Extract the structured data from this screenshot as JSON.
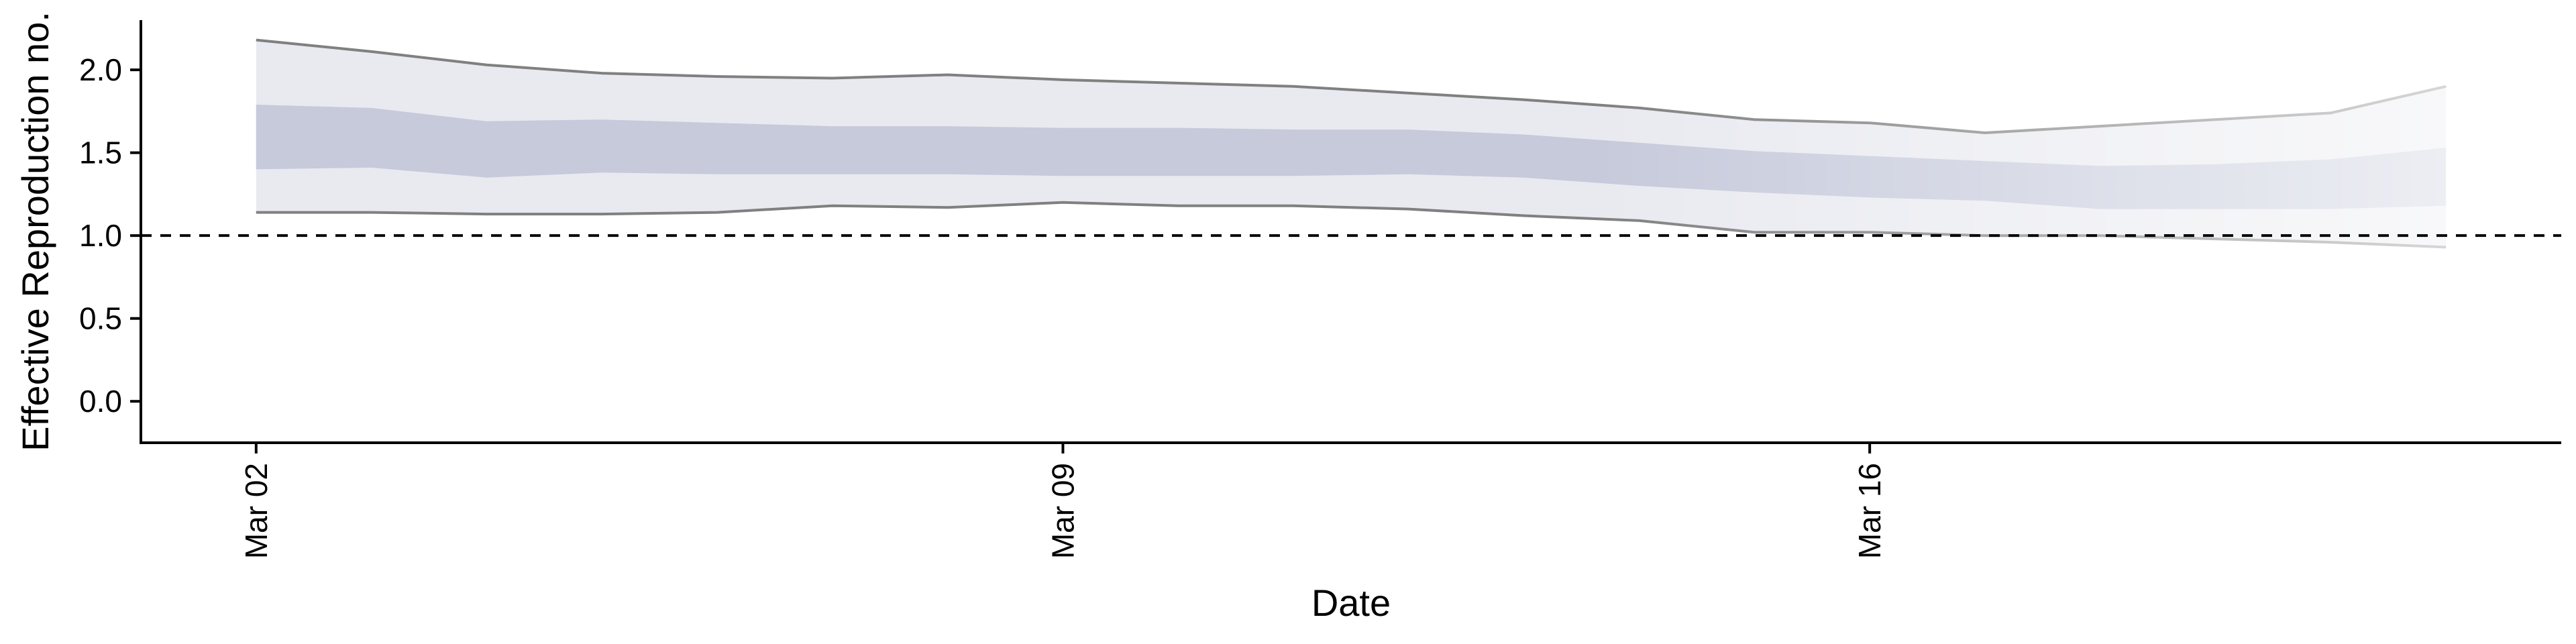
{
  "chart_data": {
    "type": "area",
    "title": "",
    "xlabel": "Date",
    "ylabel": "Effective Reproduction no.",
    "x_dates": [
      "2020-03-02",
      "2020-03-03",
      "2020-03-04",
      "2020-03-05",
      "2020-03-06",
      "2020-03-07",
      "2020-03-08",
      "2020-03-09",
      "2020-03-10",
      "2020-03-11",
      "2020-03-12",
      "2020-03-13",
      "2020-03-14",
      "2020-03-15",
      "2020-03-16",
      "2020-03-17",
      "2020-03-18",
      "2020-03-19",
      "2020-03-20",
      "2020-03-21"
    ],
    "x_ticks": [
      {
        "date": "2020-03-02",
        "label": "Mar 02"
      },
      {
        "date": "2020-03-09",
        "label": "Mar 09"
      },
      {
        "date": "2020-03-16",
        "label": "Mar 16"
      }
    ],
    "y_ticks": [
      0.0,
      0.5,
      1.0,
      1.5,
      2.0
    ],
    "y_tick_labels": [
      "0.0",
      "0.5",
      "1.0",
      "1.5",
      "2.0"
    ],
    "xlim": [
      "2020-03-01",
      "2020-03-22"
    ],
    "ylim": [
      -0.25,
      2.3
    ],
    "reference_line": {
      "y": 1.0,
      "style": "dashed"
    },
    "grid": false,
    "legend": "none",
    "bands": [
      {
        "level": "outer",
        "upper": [
          2.18,
          2.11,
          2.03,
          1.98,
          1.96,
          1.95,
          1.97,
          1.94,
          1.92,
          1.9,
          1.86,
          1.82,
          1.77,
          1.7,
          1.68,
          1.62,
          1.66,
          1.7,
          1.74,
          1.9
        ],
        "lower": [
          1.14,
          1.14,
          1.13,
          1.13,
          1.14,
          1.18,
          1.17,
          1.2,
          1.18,
          1.18,
          1.16,
          1.12,
          1.09,
          1.02,
          1.02,
          1.0,
          1.0,
          0.98,
          0.96,
          0.93
        ]
      },
      {
        "level": "inner",
        "upper": [
          1.79,
          1.77,
          1.69,
          1.7,
          1.68,
          1.66,
          1.66,
          1.65,
          1.65,
          1.64,
          1.64,
          1.61,
          1.56,
          1.51,
          1.48,
          1.45,
          1.42,
          1.43,
          1.46,
          1.53
        ],
        "lower": [
          1.4,
          1.41,
          1.35,
          1.38,
          1.37,
          1.37,
          1.37,
          1.36,
          1.36,
          1.36,
          1.37,
          1.35,
          1.3,
          1.26,
          1.23,
          1.21,
          1.16,
          1.16,
          1.16,
          1.18
        ]
      }
    ],
    "colors": {
      "outer_band": "#e9eaf0",
      "inner_band": "#c6cadb",
      "bound_line": "#808080",
      "axis": "#000000"
    }
  }
}
